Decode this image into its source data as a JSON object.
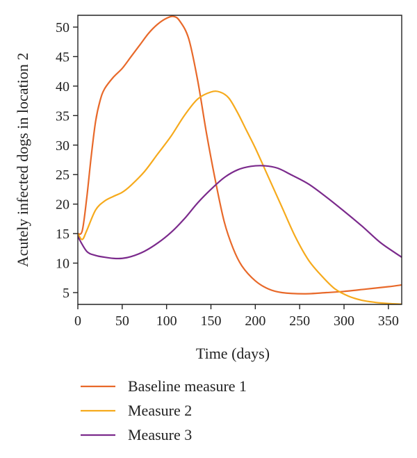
{
  "chart_data": {
    "type": "line",
    "title": "",
    "xlabel": "Time (days)",
    "ylabel": "Acutely infected dogs in location 2",
    "xlim": [
      0,
      365
    ],
    "ylim": [
      3,
      52
    ],
    "x_ticks": [
      0,
      50,
      100,
      150,
      200,
      250,
      300,
      350
    ],
    "y_ticks": [
      5,
      10,
      15,
      20,
      25,
      30,
      35,
      40,
      45,
      50
    ],
    "grid": false,
    "legend_position": "bottom",
    "series": [
      {
        "name": "Baseline measure 1",
        "color": "#e8692a",
        "points": [
          [
            0,
            15
          ],
          [
            5,
            15.5
          ],
          [
            10,
            21
          ],
          [
            15,
            28
          ],
          [
            20,
            34
          ],
          [
            25,
            37.5
          ],
          [
            30,
            39.5
          ],
          [
            40,
            41.5
          ],
          [
            50,
            43
          ],
          [
            60,
            45
          ],
          [
            70,
            47
          ],
          [
            80,
            49
          ],
          [
            90,
            50.5
          ],
          [
            100,
            51.5
          ],
          [
            108,
            51.8
          ],
          [
            115,
            51
          ],
          [
            125,
            48
          ],
          [
            135,
            41
          ],
          [
            145,
            32
          ],
          [
            155,
            24
          ],
          [
            165,
            17
          ],
          [
            175,
            12.5
          ],
          [
            185,
            9.5
          ],
          [
            200,
            7
          ],
          [
            215,
            5.6
          ],
          [
            230,
            5
          ],
          [
            255,
            4.8
          ],
          [
            280,
            5
          ],
          [
            300,
            5.2
          ],
          [
            325,
            5.6
          ],
          [
            350,
            6
          ],
          [
            365,
            6.3
          ]
        ]
      },
      {
        "name": "Measure 2",
        "color": "#f6aa1c",
        "points": [
          [
            0,
            15
          ],
          [
            5,
            14
          ],
          [
            10,
            15.5
          ],
          [
            20,
            19
          ],
          [
            30,
            20.5
          ],
          [
            40,
            21.3
          ],
          [
            50,
            22
          ],
          [
            60,
            23.2
          ],
          [
            75,
            25.5
          ],
          [
            90,
            28.5
          ],
          [
            105,
            31.5
          ],
          [
            120,
            35
          ],
          [
            135,
            37.8
          ],
          [
            150,
            39
          ],
          [
            160,
            39
          ],
          [
            170,
            38
          ],
          [
            180,
            35.5
          ],
          [
            190,
            32.5
          ],
          [
            200,
            29.5
          ],
          [
            215,
            24.5
          ],
          [
            230,
            19.5
          ],
          [
            245,
            14.5
          ],
          [
            260,
            10.5
          ],
          [
            275,
            7.8
          ],
          [
            290,
            5.6
          ],
          [
            305,
            4.4
          ],
          [
            320,
            3.7
          ],
          [
            335,
            3.35
          ],
          [
            350,
            3.15
          ],
          [
            365,
            3.05
          ]
        ]
      },
      {
        "name": "Measure 3",
        "color": "#7b2a8c",
        "points": [
          [
            0,
            14.5
          ],
          [
            10,
            12
          ],
          [
            20,
            11.3
          ],
          [
            30,
            11
          ],
          [
            40,
            10.8
          ],
          [
            50,
            10.8
          ],
          [
            60,
            11.1
          ],
          [
            75,
            12
          ],
          [
            90,
            13.4
          ],
          [
            105,
            15.2
          ],
          [
            120,
            17.5
          ],
          [
            135,
            20.2
          ],
          [
            150,
            22.5
          ],
          [
            165,
            24.5
          ],
          [
            180,
            25.8
          ],
          [
            195,
            26.4
          ],
          [
            210,
            26.5
          ],
          [
            225,
            26.1
          ],
          [
            240,
            25
          ],
          [
            260,
            23.4
          ],
          [
            280,
            21.2
          ],
          [
            300,
            18.8
          ],
          [
            320,
            16.3
          ],
          [
            340,
            13.6
          ],
          [
            355,
            12
          ],
          [
            365,
            11
          ]
        ]
      }
    ]
  }
}
